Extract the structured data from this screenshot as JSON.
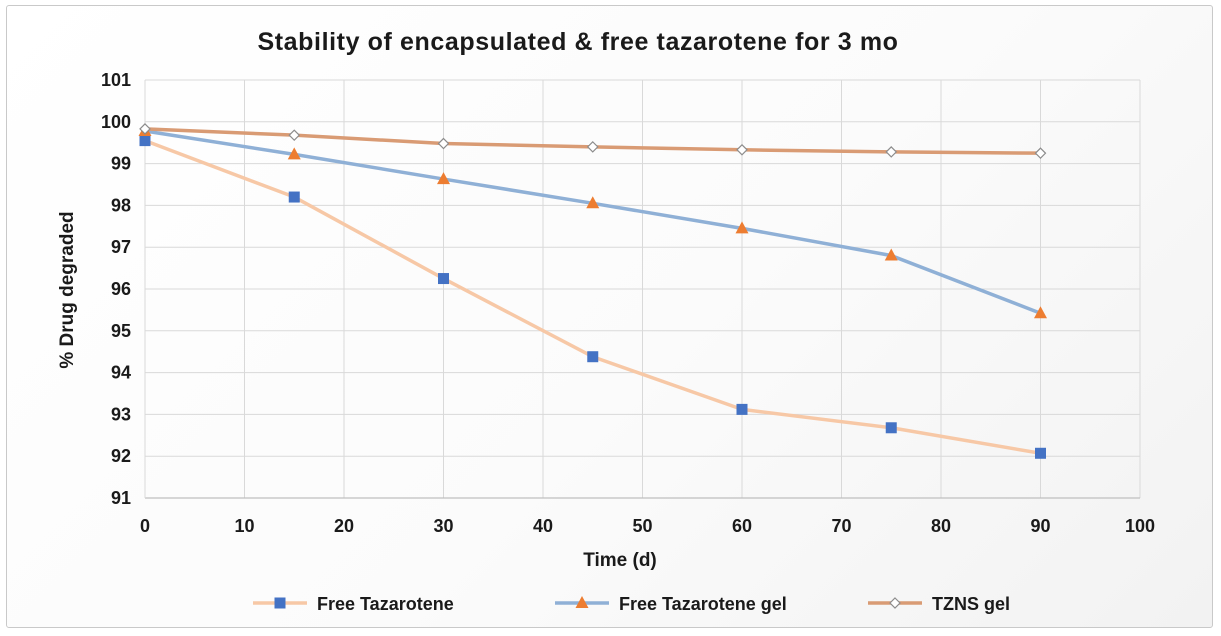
{
  "chart_data": {
    "type": "line",
    "title": "Stability of encapsulated & free tazarotene for 3 mo",
    "xlabel": "Time (d)",
    "ylabel": "% Drug degraded",
    "xlim": [
      0,
      100
    ],
    "ylim": [
      91,
      101
    ],
    "x_ticks": [
      "0",
      "10",
      "20",
      "30",
      "40",
      "50",
      "60",
      "70",
      "80",
      "90",
      "100"
    ],
    "y_ticks": [
      "91",
      "92",
      "93",
      "94",
      "95",
      "96",
      "97",
      "98",
      "99",
      "100",
      "101"
    ],
    "grid": true,
    "legend_position": "bottom",
    "series": [
      {
        "name": "Free Tazarotene",
        "x": [
          0,
          15,
          30,
          45,
          60,
          75,
          90
        ],
        "y": [
          99.55,
          98.2,
          96.25,
          94.38,
          93.12,
          92.68,
          92.07
        ],
        "line_color": "#f7c8a6",
        "marker": "square",
        "marker_color": "#4472c4"
      },
      {
        "name": "Free Tazarotene gel",
        "x": [
          0,
          15,
          30,
          45,
          60,
          75,
          90
        ],
        "y": [
          99.78,
          99.22,
          98.63,
          98.05,
          97.45,
          96.8,
          95.42
        ],
        "line_color": "#8fb0d6",
        "marker": "triangle",
        "marker_color": "#ed7d31"
      },
      {
        "name": "TZNS gel",
        "x": [
          0,
          15,
          30,
          45,
          60,
          75,
          90
        ],
        "y": [
          99.83,
          99.68,
          99.48,
          99.4,
          99.33,
          99.28,
          99.25
        ],
        "line_color": "#d99b74",
        "marker": "diamond",
        "marker_color": "#ffffff"
      }
    ]
  }
}
